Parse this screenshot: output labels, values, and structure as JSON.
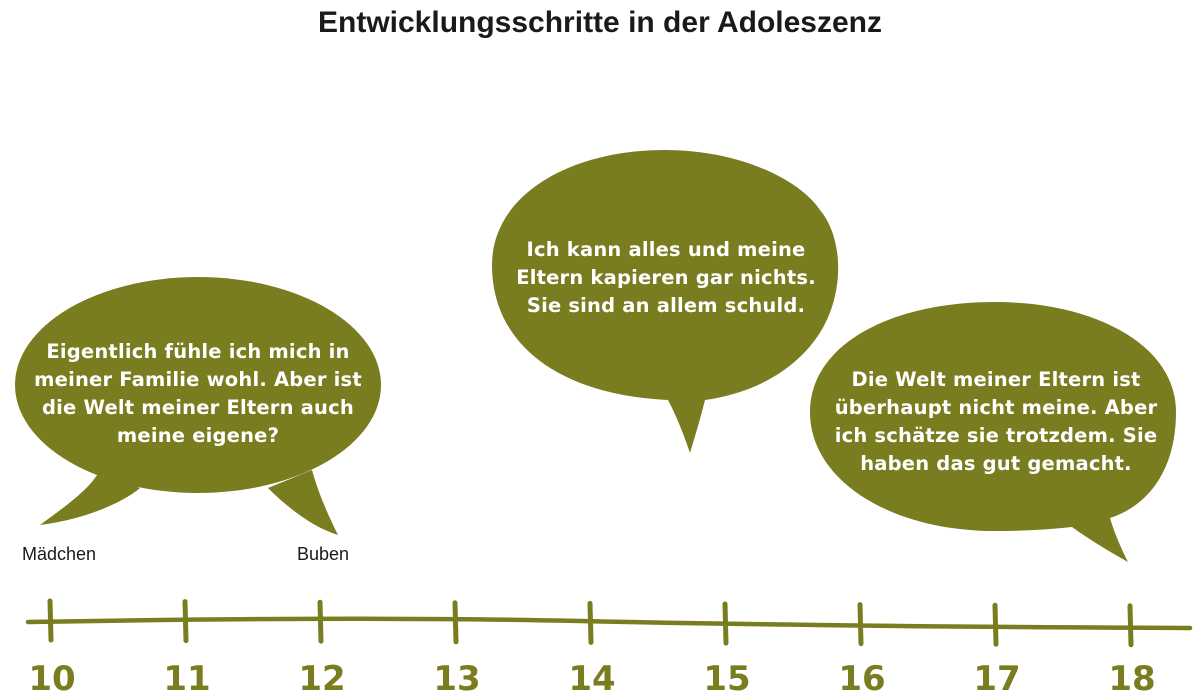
{
  "title": "Entwicklungsschritte in der Adoleszenz",
  "colors": {
    "bubble": "#7a7d1f",
    "text": "#ffffff",
    "line": "#7a7d1f"
  },
  "bubbles": [
    {
      "id": "bubble-madchen-buben",
      "lines": [
        "Eigentlich fühle ich mich in",
        "meiner Familie wohl. Aber ist",
        "die Welt meiner Eltern auch",
        "meine eigene?"
      ]
    },
    {
      "id": "bubble-14",
      "lines": [
        "Ich kann alles und meine",
        "Eltern kapieren gar nichts.",
        "Sie sind an allem schuld."
      ]
    },
    {
      "id": "bubble-18",
      "lines": [
        "Die Welt meiner Eltern ist",
        "überhaupt nicht meine. Aber",
        "ich schätze sie trotzdem. Sie",
        "haben das gut gemacht."
      ]
    }
  ],
  "labels": {
    "madchen": "Mädchen",
    "buben": "Buben"
  },
  "timeline": {
    "ticks": [
      "10",
      "11",
      "12",
      "13",
      "14",
      "15",
      "16",
      "17",
      "18"
    ]
  }
}
